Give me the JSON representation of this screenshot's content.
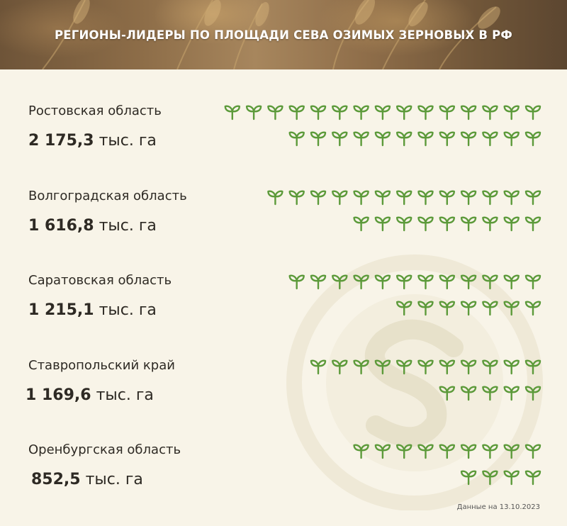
{
  "title": "РЕГИОНЫ-ЛИДЕРЫ ПО ПЛОЩАДИ СЕВА ОЗИМЫХ ЗЕРНОВЫХ В РФ",
  "unit": "тыс. га",
  "note": "Данные на 13.10.2023",
  "colors": {
    "icon": "#5c9a3a",
    "text": "#2e2a24",
    "background": "#f8f4e8"
  },
  "icon_name": "sprout-icon",
  "chart_data": {
    "type": "bar",
    "categories": [
      "Ростовская область",
      "Волгоградская область",
      "Саратовская область",
      "Ставропольский край",
      "Оренбургская область"
    ],
    "values": [
      2175.3,
      1616.8,
      1215.1,
      1169.6,
      852.5
    ],
    "value_labels": [
      "2 175,3",
      "1 616,8",
      "1 215,1",
      "1 169,6",
      "852,5"
    ],
    "icons_per_row": [
      [
        15,
        12
      ],
      [
        13,
        9
      ],
      [
        12,
        7
      ],
      [
        11,
        5
      ],
      [
        9,
        4
      ]
    ]
  }
}
